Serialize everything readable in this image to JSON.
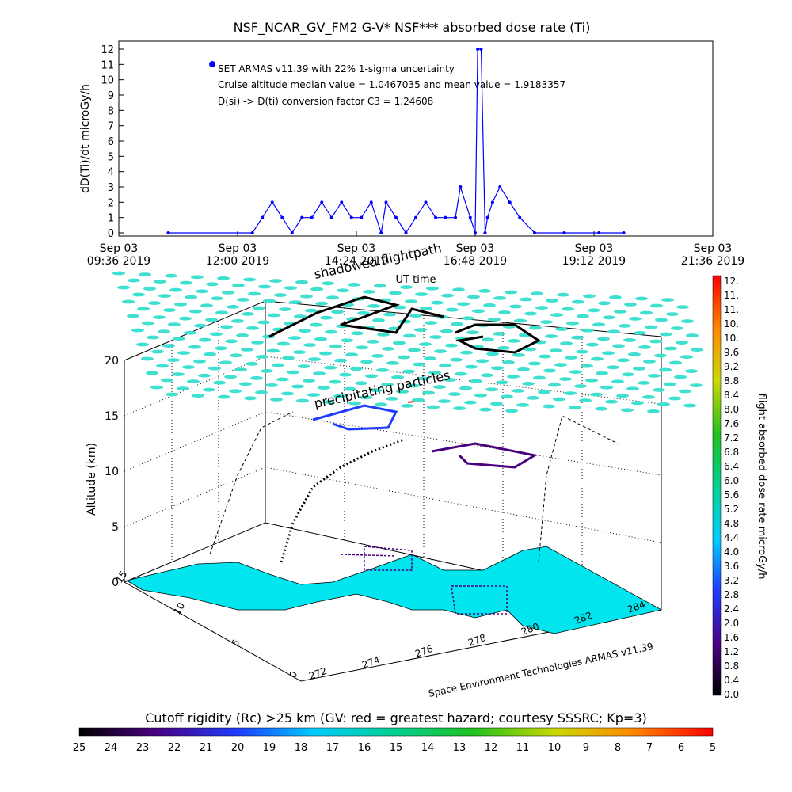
{
  "chart_data": [
    {
      "type": "line",
      "title": "NSF_NCAR_GV_FM2 G-V* NSF*** absorbed dose rate (Ti)",
      "ylabel": "dD(Ti)/dt microGy/h",
      "xlabel": "UT time",
      "ylim": [
        0,
        12
      ],
      "yticks": [
        "0",
        "1",
        "2",
        "3",
        "4",
        "5",
        "6",
        "7",
        "8",
        "9",
        "10",
        "11",
        "12"
      ],
      "xticks": [
        {
          "line1": "Sep 03",
          "line2": "09:36 2019"
        },
        {
          "line1": "Sep 03",
          "line2": "12:00 2019"
        },
        {
          "line1": "Sep 03",
          "line2": "14:24 2019"
        },
        {
          "line1": "Sep 03",
          "line2": "16:48 2019"
        },
        {
          "line1": "Sep 03",
          "line2": "19:12 2019"
        },
        {
          "line1": "Sep 03",
          "line2": "21:36 2019"
        }
      ],
      "xlim_hours": [
        9.6,
        21.6
      ],
      "annotations": [
        "SET ARMAS v11.39 with 22% 1-sigma uncertainty",
        "Cruise altitude median value = 1.0467035 and mean value = 1.9183357",
        "D(si) -> D(ti) conversion factor C3 = 1.24608"
      ],
      "series": [
        {
          "color": "#0000ff",
          "x_hours": [
            10.6,
            12.3,
            12.5,
            12.7,
            12.9,
            13.1,
            13.3,
            13.5,
            13.7,
            13.9,
            14.1,
            14.3,
            14.5,
            14.7,
            14.9,
            15.0,
            15.2,
            15.4,
            15.6,
            15.8,
            16.0,
            16.2,
            16.4,
            16.5,
            16.7,
            16.8,
            16.85,
            16.92,
            17.0,
            17.05,
            17.15,
            17.3,
            17.5,
            17.7,
            18.0,
            18.6,
            19.3,
            19.8
          ],
          "values": [
            0,
            0,
            1,
            2,
            1,
            0,
            1,
            1,
            2,
            1,
            2,
            1,
            1,
            2,
            0,
            2,
            1,
            0,
            1,
            2,
            1,
            1,
            1,
            3,
            1,
            0,
            12,
            12,
            0,
            1,
            2,
            3,
            2,
            1,
            0,
            0,
            0,
            0
          ]
        }
      ]
    },
    {
      "type": "scatter3d",
      "zlabel": "Altitude (km)",
      "zticks": [
        "0",
        "5",
        "10",
        "15",
        "20"
      ],
      "lat_ticks": [
        "0",
        "5",
        "10",
        "15"
      ],
      "lon_ticks": [
        "272",
        "274",
        "276",
        "278",
        "280",
        "282",
        "284"
      ],
      "labels": [
        "shadowed flightpath",
        "precipitating particles",
        "Space Environment Technologies ARMAS v11.39"
      ],
      "colorbar_label": "flight absorbed dose rate microGy/h",
      "colorbar_ticks": [
        "12.",
        "11.",
        "11.",
        "10.",
        "10.",
        "9.6",
        "9.2",
        "8.8",
        "8.4",
        "8.0",
        "7.6",
        "7.2",
        "6.8",
        "6.4",
        "6.0",
        "5.6",
        "5.2",
        "4.8",
        "4.4",
        "4.0",
        "3.6",
        "3.2",
        "2.8",
        "2.4",
        "2.0",
        "1.6",
        "1.2",
        "0.8",
        "0.4",
        "0.0"
      ]
    },
    {
      "type": "colorbar",
      "title": "Cutoff rigidity (Rc) >25 km (GV: red = greatest hazard; courtesy SSSRC; Kp=3)",
      "ticks": [
        "25",
        "24",
        "23",
        "22",
        "21",
        "20",
        "19",
        "18",
        "17",
        "16",
        "15",
        "14",
        "13",
        "12",
        "11",
        "10",
        "9",
        "8",
        "7",
        "6",
        "5"
      ]
    }
  ],
  "colors": {
    "series": "#0000ff",
    "ocean": "#00e5ee",
    "particles": "#40e0d0"
  }
}
